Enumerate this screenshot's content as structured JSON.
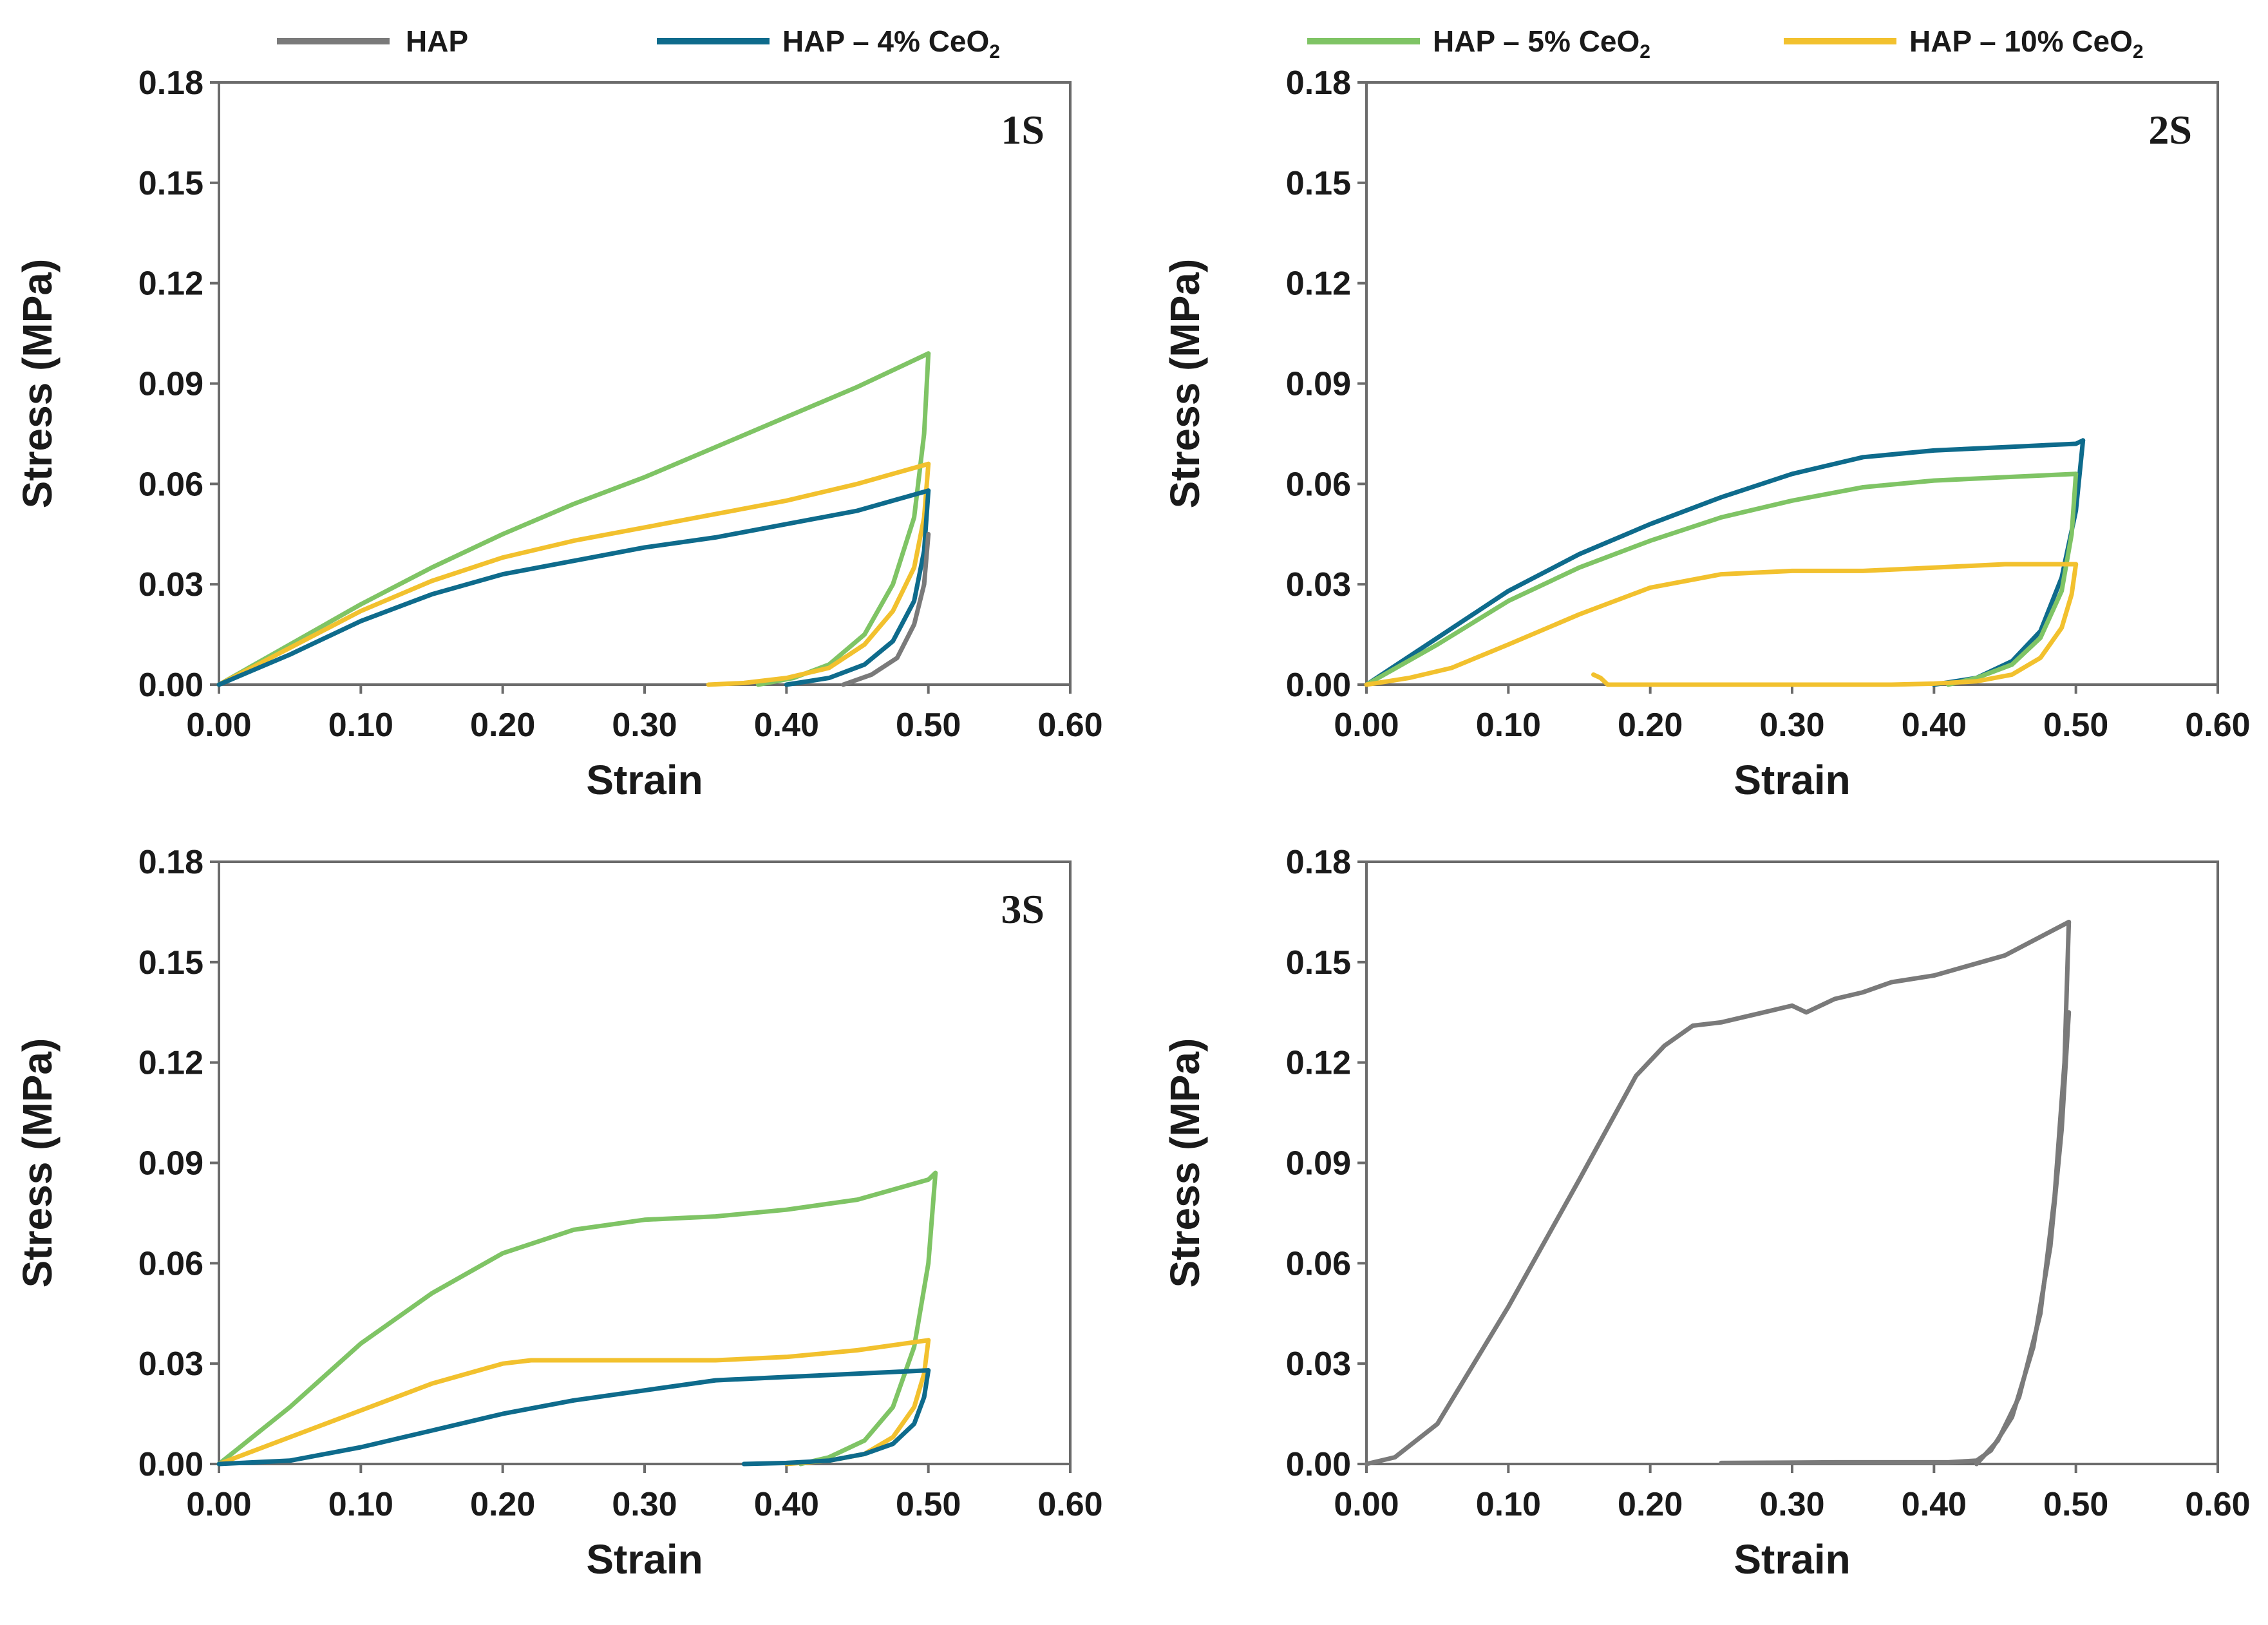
{
  "colors": {
    "HAP": "#7a7a7a",
    "HAP - 4% CeO2": "#0e6b8c",
    "HAP - 5% CeO2": "#7fc465",
    "HAP - 10% CeO2": "#f2c12e"
  },
  "legend": [
    {
      "name": "HAP",
      "label": "HAP",
      "sub": ""
    },
    {
      "name": "HAP - 4% CeO2",
      "label": "HAP – 4% CeO",
      "sub": "2"
    },
    {
      "name": "HAP - 5% CeO2",
      "label": "HAP – 5% CeO",
      "sub": "2"
    },
    {
      "name": "HAP - 10% CeO2",
      "label": "HAP – 10% CeO",
      "sub": "2"
    }
  ],
  "chart_data": [
    {
      "type": "line",
      "panel_label": "1S",
      "xlabel": "Strain",
      "ylabel": "Stress (MPa)",
      "xlim": [
        0,
        0.6
      ],
      "ylim": [
        0,
        0.18
      ],
      "xticks": [
        "0.00",
        "0.10",
        "0.20",
        "0.30",
        "0.40",
        "0.50",
        "0.60"
      ],
      "yticks": [
        "0.00",
        "0.03",
        "0.06",
        "0.09",
        "0.12",
        "0.15",
        "0.18"
      ],
      "series": [
        {
          "name": "HAP - 5% CeO2",
          "x": [
            0,
            0.05,
            0.1,
            0.15,
            0.2,
            0.25,
            0.3,
            0.35,
            0.4,
            0.45,
            0.5
          ],
          "y": [
            0,
            0.012,
            0.024,
            0.035,
            0.045,
            0.054,
            0.062,
            0.071,
            0.08,
            0.089,
            0.099
          ]
        },
        {
          "name": "HAP - 5% CeO2",
          "x": [
            0.5,
            0.497,
            0.49,
            0.475,
            0.455,
            0.43,
            0.405,
            0.38
          ],
          "y": [
            0.099,
            0.075,
            0.05,
            0.03,
            0.015,
            0.006,
            0.002,
            0
          ]
        },
        {
          "name": "HAP - 10% CeO2",
          "x": [
            0,
            0.05,
            0.1,
            0.15,
            0.2,
            0.25,
            0.3,
            0.35,
            0.4,
            0.45,
            0.5
          ],
          "y": [
            0,
            0.011,
            0.022,
            0.031,
            0.038,
            0.043,
            0.047,
            0.051,
            0.055,
            0.06,
            0.066
          ]
        },
        {
          "name": "HAP - 10% CeO2",
          "x": [
            0.5,
            0.497,
            0.49,
            0.475,
            0.455,
            0.43,
            0.4,
            0.37,
            0.345
          ],
          "y": [
            0.066,
            0.05,
            0.035,
            0.022,
            0.012,
            0.005,
            0.002,
            0.0005,
            0
          ]
        },
        {
          "name": "HAP - 4% CeO2",
          "x": [
            0,
            0.05,
            0.1,
            0.15,
            0.2,
            0.25,
            0.3,
            0.35,
            0.4,
            0.45,
            0.5
          ],
          "y": [
            0,
            0.009,
            0.019,
            0.027,
            0.033,
            0.037,
            0.041,
            0.044,
            0.048,
            0.052,
            0.058
          ]
        },
        {
          "name": "HAP - 4% CeO2",
          "x": [
            0.5,
            0.497,
            0.49,
            0.475,
            0.455,
            0.43,
            0.4
          ],
          "y": [
            0.058,
            0.04,
            0.025,
            0.013,
            0.006,
            0.002,
            0
          ]
        },
        {
          "name": "HAP",
          "x": [
            0.5,
            0.497,
            0.49,
            0.478,
            0.46,
            0.44
          ],
          "y": [
            0.045,
            0.03,
            0.018,
            0.008,
            0.003,
            0
          ]
        }
      ]
    },
    {
      "type": "line",
      "panel_label": "2S",
      "xlabel": "Strain",
      "ylabel": "Stress (MPa)",
      "xlim": [
        0,
        0.6
      ],
      "ylim": [
        0,
        0.18
      ],
      "xticks": [
        "0.00",
        "0.10",
        "0.20",
        "0.30",
        "0.40",
        "0.50",
        "0.60"
      ],
      "yticks": [
        "0.00",
        "0.03",
        "0.06",
        "0.09",
        "0.12",
        "0.15",
        "0.18"
      ],
      "series": [
        {
          "name": "HAP - 4% CeO2",
          "x": [
            0,
            0.05,
            0.1,
            0.15,
            0.2,
            0.25,
            0.3,
            0.35,
            0.4,
            0.45,
            0.5,
            0.505
          ],
          "y": [
            0,
            0.014,
            0.028,
            0.039,
            0.048,
            0.056,
            0.063,
            0.068,
            0.07,
            0.071,
            0.072,
            0.073
          ]
        },
        {
          "name": "HAP - 4% CeO2",
          "x": [
            0.505,
            0.5,
            0.49,
            0.475,
            0.455,
            0.43,
            0.4
          ],
          "y": [
            0.073,
            0.052,
            0.032,
            0.016,
            0.007,
            0.002,
            0
          ]
        },
        {
          "name": "HAP - 5% CeO2",
          "x": [
            0,
            0.05,
            0.1,
            0.15,
            0.2,
            0.25,
            0.3,
            0.35,
            0.4,
            0.45,
            0.5
          ],
          "y": [
            0,
            0.012,
            0.025,
            0.035,
            0.043,
            0.05,
            0.055,
            0.059,
            0.061,
            0.062,
            0.063
          ]
        },
        {
          "name": "HAP - 5% CeO2",
          "x": [
            0.5,
            0.497,
            0.49,
            0.475,
            0.455,
            0.43,
            0.41
          ],
          "y": [
            0.063,
            0.045,
            0.028,
            0.014,
            0.006,
            0.002,
            0
          ]
        },
        {
          "name": "HAP - 10% CeO2",
          "x": [
            0,
            0.03,
            0.06,
            0.1,
            0.15,
            0.2,
            0.25,
            0.3,
            0.35,
            0.4,
            0.45,
            0.5
          ],
          "y": [
            0,
            0.002,
            0.005,
            0.012,
            0.021,
            0.029,
            0.033,
            0.034,
            0.034,
            0.035,
            0.036,
            0.036
          ]
        },
        {
          "name": "HAP - 10% CeO2",
          "x": [
            0.5,
            0.497,
            0.49,
            0.475,
            0.455,
            0.43,
            0.4,
            0.37
          ],
          "y": [
            0.036,
            0.027,
            0.017,
            0.008,
            0.003,
            0.001,
            0.0003,
            0
          ]
        },
        {
          "name": "HAP - 10% CeO2",
          "x": [
            0.16,
            0.165,
            0.17,
            0.3,
            0.37
          ],
          "y": [
            0.003,
            0.002,
            0,
            0,
            0
          ]
        }
      ]
    },
    {
      "type": "line",
      "panel_label": "3S",
      "xlabel": "Strain",
      "ylabel": "Stress (MPa)",
      "xlim": [
        0,
        0.6
      ],
      "ylim": [
        0,
        0.18
      ],
      "xticks": [
        "0.00",
        "0.10",
        "0.20",
        "0.30",
        "0.40",
        "0.50",
        "0.60"
      ],
      "yticks": [
        "0.00",
        "0.03",
        "0.06",
        "0.09",
        "0.12",
        "0.15",
        "0.18"
      ],
      "series": [
        {
          "name": "HAP - 5% CeO2",
          "x": [
            0,
            0.05,
            0.1,
            0.15,
            0.2,
            0.25,
            0.3,
            0.35,
            0.4,
            0.45,
            0.5,
            0.505
          ],
          "y": [
            0,
            0.017,
            0.036,
            0.051,
            0.063,
            0.07,
            0.073,
            0.074,
            0.076,
            0.079,
            0.085,
            0.087
          ]
        },
        {
          "name": "HAP - 5% CeO2",
          "x": [
            0.505,
            0.5,
            0.49,
            0.475,
            0.455,
            0.43,
            0.41
          ],
          "y": [
            0.087,
            0.06,
            0.035,
            0.017,
            0.007,
            0.002,
            0
          ]
        },
        {
          "name": "HAP - 10% CeO2",
          "x": [
            0,
            0.05,
            0.1,
            0.15,
            0.2,
            0.22,
            0.25,
            0.3,
            0.35,
            0.4,
            0.45,
            0.5
          ],
          "y": [
            0,
            0.008,
            0.016,
            0.024,
            0.03,
            0.031,
            0.031,
            0.031,
            0.031,
            0.032,
            0.034,
            0.037
          ]
        },
        {
          "name": "HAP - 10% CeO2",
          "x": [
            0.5,
            0.497,
            0.49,
            0.475,
            0.455,
            0.43,
            0.4
          ],
          "y": [
            0.037,
            0.027,
            0.017,
            0.008,
            0.003,
            0.001,
            0
          ]
        },
        {
          "name": "HAP - 4% CeO2",
          "x": [
            0,
            0.05,
            0.1,
            0.15,
            0.2,
            0.25,
            0.3,
            0.35,
            0.4,
            0.45,
            0.5
          ],
          "y": [
            0,
            0.001,
            0.005,
            0.01,
            0.015,
            0.019,
            0.022,
            0.025,
            0.026,
            0.027,
            0.028
          ]
        },
        {
          "name": "HAP - 4% CeO2",
          "x": [
            0.5,
            0.497,
            0.49,
            0.475,
            0.455,
            0.43,
            0.4,
            0.37
          ],
          "y": [
            0.028,
            0.02,
            0.012,
            0.006,
            0.003,
            0.001,
            0.0003,
            0
          ]
        }
      ]
    },
    {
      "type": "line",
      "panel_label": "",
      "xlabel": "Strain",
      "ylabel": "Stress (MPa)",
      "xlim": [
        0,
        0.6
      ],
      "ylim": [
        0,
        0.18
      ],
      "xticks": [
        "0.00",
        "0.10",
        "0.20",
        "0.30",
        "0.40",
        "0.50",
        "0.60"
      ],
      "yticks": [
        "0.00",
        "0.03",
        "0.06",
        "0.09",
        "0.12",
        "0.15",
        "0.18"
      ],
      "series": [
        {
          "name": "HAP",
          "x": [
            0,
            0.02,
            0.05,
            0.1,
            0.15,
            0.19,
            0.21,
            0.23,
            0.25,
            0.28,
            0.3,
            0.31,
            0.33,
            0.35,
            0.37,
            0.4,
            0.45,
            0.495
          ],
          "y": [
            0,
            0.002,
            0.012,
            0.047,
            0.085,
            0.116,
            0.125,
            0.131,
            0.132,
            0.135,
            0.137,
            0.135,
            0.139,
            0.141,
            0.144,
            0.146,
            0.152,
            0.162
          ]
        },
        {
          "name": "HAP",
          "x": [
            0.495,
            0.492,
            0.485,
            0.475,
            0.46,
            0.445,
            0.43
          ],
          "y": [
            0.162,
            0.12,
            0.08,
            0.045,
            0.02,
            0.007,
            0
          ]
        },
        {
          "name": "HAP",
          "x": [
            0.495,
            0.49,
            0.482,
            0.47,
            0.455,
            0.44,
            0.43,
            0.41,
            0.33,
            0.25
          ],
          "y": [
            0.135,
            0.1,
            0.065,
            0.035,
            0.014,
            0.004,
            0.001,
            0.0005,
            0.0005,
            0.0003
          ]
        }
      ]
    }
  ]
}
